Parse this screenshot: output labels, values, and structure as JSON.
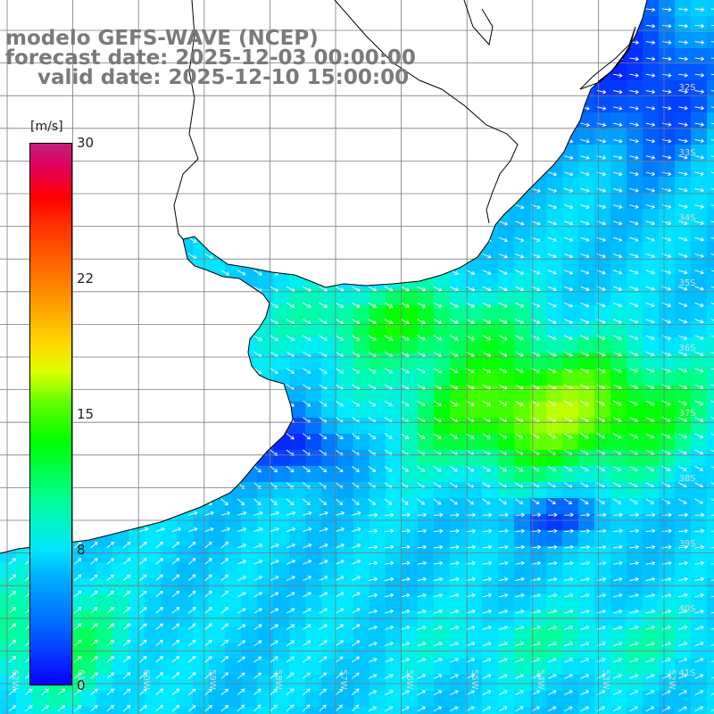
{
  "title": {
    "line1": "modelo GEFS-WAVE (NCEP)",
    "line2": "forecast date: 2025-12-03 00:00:00",
    "line3": "valid date: 2025-12-10 15:00:00"
  },
  "colorbar": {
    "units": "[m/s]",
    "ticks": [
      "30",
      "22",
      "15",
      "8",
      "0"
    ],
    "tick_values": [
      30,
      22,
      15,
      8,
      0
    ],
    "min": 0,
    "max": 30,
    "colors": [
      "#0a00ff",
      "#00b0ff",
      "#00e6ff",
      "#00ff00",
      "#e0ff00",
      "#ff9000",
      "#ff0000",
      "#c0207a"
    ]
  },
  "map": {
    "lat_labels": [
      "32S",
      "33S",
      "34S",
      "35S",
      "36S",
      "37S",
      "38S",
      "39S",
      "40S",
      "41S"
    ],
    "lon_labels": [
      "62W",
      "61W",
      "60W",
      "59W",
      "58W",
      "57W",
      "56W",
      "55W",
      "54W",
      "53W",
      "52W"
    ],
    "variable": "wind speed",
    "land_color": "#ffffff",
    "grid_color": "#808080"
  }
}
